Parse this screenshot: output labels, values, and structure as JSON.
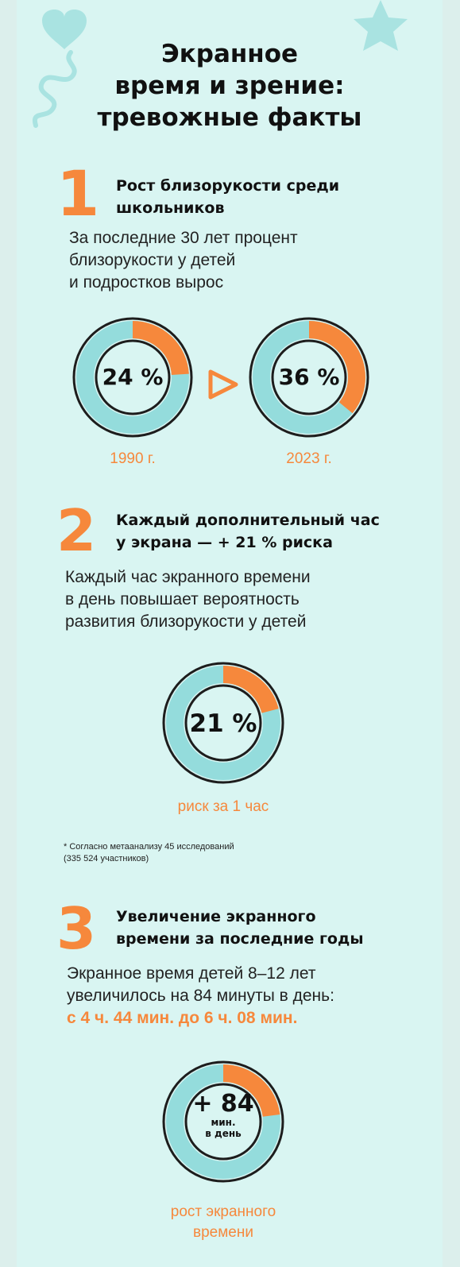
{
  "title": {
    "line1": "Экранное",
    "line2": "время и зрение:",
    "line3": "тревожные факты"
  },
  "section1": {
    "number": "1",
    "heading_line1": "Рост близорукости среди",
    "heading_line2": "школьников",
    "text_line1": "За последние 30 лет процент",
    "text_line2": "близорукости у детей",
    "text_line3": "и подростков вырос",
    "ring_1990": {
      "value_text": "24 %",
      "fraction": 0.24,
      "label": "1990 г."
    },
    "ring_2023": {
      "value_text": "36 %",
      "fraction": 0.36,
      "label": "2023 г."
    }
  },
  "section2": {
    "number": "2",
    "heading_line1": "Каждый дополнительный час",
    "heading_line2": "у экрана — + 21 % риска",
    "text_line1": "Каждый час экранного времени",
    "text_line2": "в день повышает вероятность",
    "text_line3": "развития близорукости у детей",
    "ring": {
      "value_text": "21 %",
      "fraction": 0.21,
      "label": "риск за 1 час"
    },
    "note_line1": "* Согласно метаанализу 45 исследований",
    "note_line2": "(335 524 участников)"
  },
  "section3": {
    "number": "3",
    "heading_line1": "Увеличение экранного",
    "heading_line2": "времени за последние годы",
    "text_line1": "Экранное время детей 8–12 лет",
    "text_line2": "увеличилось на 84 минуты в день:",
    "text_line3": "с 4 ч. 44 мин. до 6 ч. 08 мин.",
    "ring": {
      "value_text": "+ 84",
      "unit_line1": "мин.",
      "unit_line2": "в день",
      "fraction": 0.23,
      "label_line1": "рост экранного",
      "label_line2": "времени"
    }
  },
  "colors": {
    "accent": "#f6883c",
    "ring": "#94dcdc",
    "background": "#d9f5f2"
  }
}
